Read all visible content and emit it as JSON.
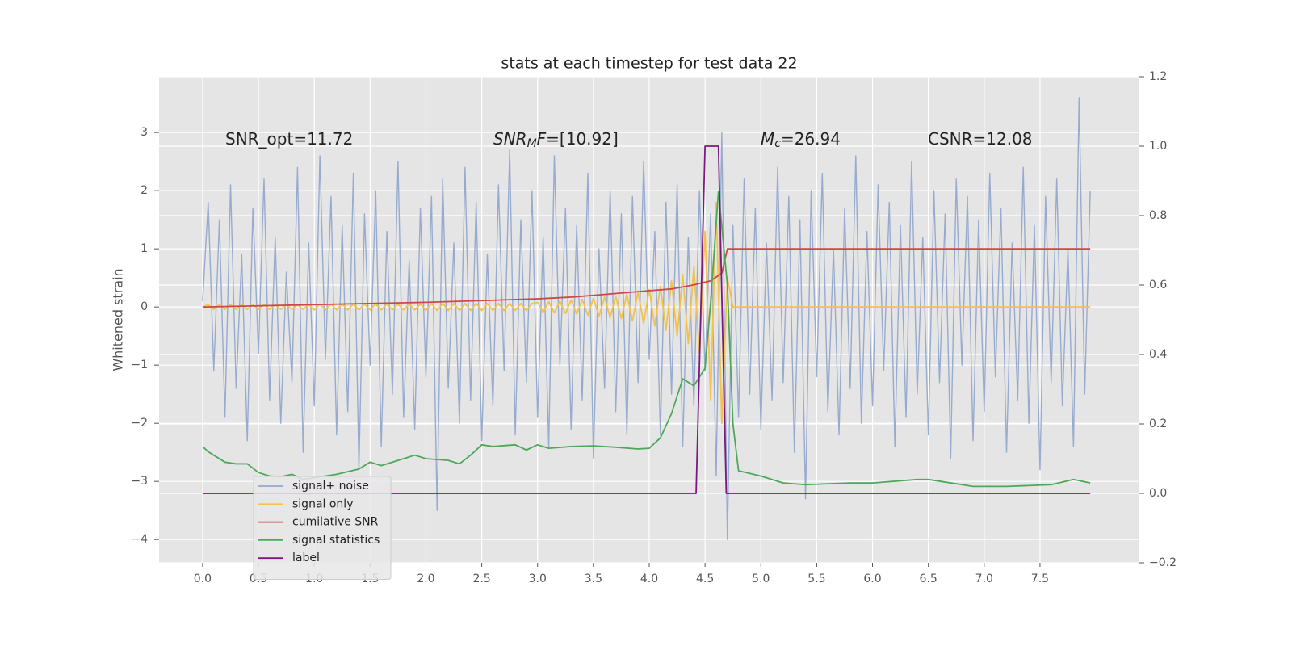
{
  "chart_data": {
    "type": "line",
    "title": "stats at each timestep for test data 22",
    "ylabel": "Whitened strain",
    "grid": true,
    "legend": "lower left",
    "xlim": [
      -0.39,
      8.39
    ],
    "ylim": [
      -4.4,
      3.96
    ],
    "y2lim": [
      -0.2,
      1.2
    ],
    "xticks": [
      {
        "value": 0,
        "label": "0.0"
      },
      {
        "value": 0.5,
        "label": "0.5"
      },
      {
        "value": 1,
        "label": "1.0"
      },
      {
        "value": 1.5,
        "label": "1.5"
      },
      {
        "value": 2,
        "label": "2.0"
      },
      {
        "value": 2.5,
        "label": "2.5"
      },
      {
        "value": 3,
        "label": "3.0"
      },
      {
        "value": 3.5,
        "label": "3.5"
      },
      {
        "value": 4,
        "label": "4.0"
      },
      {
        "value": 4.5,
        "label": "4.5"
      },
      {
        "value": 5,
        "label": "5.0"
      },
      {
        "value": 5.5,
        "label": "5.5"
      },
      {
        "value": 6,
        "label": "6.0"
      },
      {
        "value": 6.5,
        "label": "6.5"
      },
      {
        "value": 7,
        "label": "7.0"
      },
      {
        "value": 7.5,
        "label": "7.5"
      }
    ],
    "yticks": [
      {
        "value": -4,
        "label": "−4"
      },
      {
        "value": -3,
        "label": "−3"
      },
      {
        "value": -2,
        "label": "−2"
      },
      {
        "value": -1,
        "label": "−1"
      },
      0,
      1,
      2,
      3
    ],
    "y2ticks": [
      {
        "value": -0.2,
        "label": "−0.2"
      },
      {
        "value": 0,
        "label": "0.0"
      },
      {
        "value": 0.2,
        "label": "0.2"
      },
      {
        "value": 0.4,
        "label": "0.4"
      },
      {
        "value": 0.6,
        "label": "0.6"
      },
      {
        "value": 0.8,
        "label": "0.8"
      },
      {
        "value": 1,
        "label": "1.0"
      },
      {
        "value": 1.2,
        "label": "1.2"
      }
    ],
    "annotations": [
      [
        {
          "text": "SNR_opt=11.72"
        }
      ],
      [
        {
          "text": "SNR",
          "style": "italic"
        },
        {
          "text": "M",
          "style": "sub"
        },
        {
          "text": "F",
          "style": "italic"
        },
        {
          "text": "=[10.92]"
        }
      ],
      [
        {
          "text": "M",
          "style": "italic"
        },
        {
          "text": "c",
          "style": "sub"
        },
        {
          "text": "=26.94"
        }
      ],
      [
        {
          "text": "CSNR=12.08"
        }
      ]
    ],
    "x": [
      0,
      0.05,
      0.1,
      0.15,
      0.2,
      0.25,
      0.3,
      0.35,
      0.4,
      0.45,
      0.5,
      0.55,
      0.6,
      0.65,
      0.7,
      0.75,
      0.8,
      0.85,
      0.9,
      0.95,
      1,
      1.05,
      1.1,
      1.15,
      1.2,
      1.25,
      1.3,
      1.35,
      1.4,
      1.45,
      1.5,
      1.55,
      1.6,
      1.65,
      1.7,
      1.75,
      1.8,
      1.85,
      1.9,
      1.95,
      2,
      2.05,
      2.1,
      2.15,
      2.2,
      2.25,
      2.3,
      2.35,
      2.4,
      2.45,
      2.5,
      2.55,
      2.6,
      2.65,
      2.7,
      2.75,
      2.8,
      2.85,
      2.9,
      2.95,
      3,
      3.05,
      3.1,
      3.15,
      3.2,
      3.25,
      3.3,
      3.35,
      3.4,
      3.45,
      3.5,
      3.55,
      3.6,
      3.65,
      3.7,
      3.75,
      3.8,
      3.85,
      3.9,
      3.95,
      4,
      4.05,
      4.1,
      4.15,
      4.2,
      4.25,
      4.3,
      4.35,
      4.4,
      4.45,
      4.5,
      4.55,
      4.6,
      4.65,
      4.7,
      4.75,
      4.8,
      4.85,
      4.9,
      4.95,
      5,
      5.05,
      5.1,
      5.15,
      5.2,
      5.25,
      5.3,
      5.35,
      5.4,
      5.45,
      5.5,
      5.55,
      5.6,
      5.65,
      5.7,
      5.75,
      5.8,
      5.85,
      5.9,
      5.95,
      6,
      6.05,
      6.1,
      6.15,
      6.2,
      6.25,
      6.3,
      6.35,
      6.4,
      6.45,
      6.5,
      6.55,
      6.6,
      6.65,
      6.7,
      6.75,
      6.8,
      6.85,
      6.9,
      6.95,
      7,
      7.05,
      7.1,
      7.15,
      7.2,
      7.25,
      7.3,
      7.35,
      7.4,
      7.45,
      7.5,
      7.55,
      7.6,
      7.65,
      7.7,
      7.75,
      7.8,
      7.85,
      7.9,
      7.95
    ],
    "series": [
      {
        "name": "signal+ noise",
        "color": "#92a8cd",
        "values": [
          0.1,
          1.8,
          -1.1,
          1.5,
          -1.9,
          2.1,
          -1.4,
          0.9,
          -2.3,
          1.7,
          -0.8,
          2.2,
          -1.6,
          1.2,
          -2.0,
          0.6,
          -1.3,
          2.4,
          -2.5,
          1.1,
          -1.7,
          2.6,
          -0.9,
          1.9,
          -2.2,
          1.4,
          -1.8,
          2.3,
          -2.8,
          1.6,
          -1.0,
          2.0,
          -2.4,
          1.3,
          -1.5,
          2.5,
          -1.9,
          0.8,
          -2.1,
          1.7,
          -1.2,
          1.9,
          -3.5,
          2.2,
          -1.4,
          1.1,
          -2.0,
          2.4,
          -1.6,
          1.8,
          -2.3,
          0.9,
          -1.7,
          2.1,
          -1.1,
          2.7,
          -2.2,
          1.5,
          -1.3,
          2.0,
          -1.9,
          1.2,
          -2.4,
          2.6,
          -1.0,
          1.7,
          -2.1,
          1.4,
          -1.6,
          2.3,
          -2.6,
          1.0,
          -1.4,
          2.0,
          -1.8,
          1.6,
          -2.2,
          1.9,
          -1.3,
          2.5,
          -0.9,
          1.3,
          -2.2,
          1.8,
          -1.5,
          2.1,
          -2.4,
          1.2,
          -1.7,
          2.0,
          -1.1,
          1.6,
          -2.9,
          3.0,
          -4.0,
          1.4,
          -1.9,
          2.2,
          -1.5,
          1.7,
          -2.1,
          1.1,
          -1.6,
          2.4,
          -1.3,
          1.9,
          -2.5,
          1.5,
          -3.3,
          2.0,
          -1.2,
          2.3,
          -1.8,
          1.0,
          -2.2,
          1.7,
          -1.4,
          2.6,
          -2.0,
          1.3,
          -1.7,
          2.1,
          -1.1,
          1.8,
          -2.4,
          1.4,
          -1.9,
          2.5,
          -1.5,
          1.2,
          -2.2,
          2.0,
          -1.3,
          1.6,
          -2.6,
          2.2,
          -1.0,
          1.9,
          -2.3,
          1.5,
          -1.8,
          2.3,
          -1.2,
          1.7,
          -2.5,
          1.1,
          -1.6,
          2.4,
          -2.0,
          1.4,
          -2.8,
          1.9,
          -1.3,
          2.2,
          -1.7,
          1.0,
          -2.4,
          3.6,
          -1.5,
          2.0
        ]
      },
      {
        "name": "signal only",
        "color": "#f2c14e",
        "values": [
          0,
          0.04,
          -0.04,
          0.04,
          -0.04,
          0.04,
          -0.04,
          0.04,
          -0.04,
          0.04,
          -0.04,
          0.04,
          -0.04,
          0.04,
          -0.04,
          0.04,
          -0.04,
          0.04,
          -0.04,
          0.04,
          -0.05,
          0.05,
          -0.05,
          0.05,
          -0.05,
          0.05,
          -0.05,
          0.05,
          -0.05,
          0.05,
          -0.05,
          0.05,
          -0.05,
          0.05,
          -0.05,
          0.05,
          -0.05,
          0.05,
          -0.05,
          0.05,
          -0.06,
          0.06,
          -0.06,
          0.06,
          -0.06,
          0.06,
          -0.06,
          0.06,
          -0.06,
          0.06,
          -0.06,
          0.06,
          -0.06,
          0.06,
          -0.06,
          0.06,
          -0.06,
          0.06,
          -0.06,
          0.06,
          0.08,
          -0.09,
          0.09,
          -0.1,
          0.1,
          -0.11,
          0.12,
          -0.12,
          0.13,
          -0.14,
          0.15,
          -0.16,
          0.17,
          -0.18,
          0.19,
          -0.2,
          0.22,
          -0.24,
          0.26,
          -0.28,
          0.3,
          -0.33,
          0.36,
          -0.4,
          0.45,
          -0.5,
          0.56,
          -0.63,
          0.7,
          -0.8,
          1.3,
          -1.6,
          1.8,
          -2.0,
          0.5,
          0,
          0,
          0,
          0,
          0,
          0,
          0,
          0,
          0,
          0,
          0,
          0,
          0,
          0,
          0,
          0,
          0,
          0,
          0,
          0,
          0,
          0,
          0,
          0,
          0,
          0,
          0,
          0,
          0,
          0,
          0,
          0,
          0,
          0,
          0,
          0,
          0,
          0,
          0,
          0,
          0,
          0,
          0,
          0,
          0,
          0,
          0,
          0,
          0,
          0,
          0,
          0,
          0,
          0,
          0,
          0,
          0,
          0,
          0,
          0,
          0,
          0,
          0,
          0,
          0
        ]
      },
      {
        "name": "cumilative SNR",
        "color": "#d0474a",
        "x": [
          0,
          1,
          2,
          3,
          3.3,
          3.5,
          4,
          4.2,
          4.4,
          4.55,
          4.65,
          4.7,
          7.95
        ],
        "values": [
          0,
          0.04,
          0.08,
          0.14,
          0.17,
          0.2,
          0.28,
          0.31,
          0.38,
          0.45,
          0.58,
          1,
          1
        ]
      },
      {
        "name": "signal statistics",
        "color": "#4ea85c",
        "axis": "y2",
        "x": [
          0,
          0.05,
          0.1,
          0.2,
          0.3,
          0.4,
          0.5,
          0.6,
          0.7,
          0.8,
          0.9,
          1,
          1.2,
          1.4,
          1.5,
          1.6,
          1.8,
          1.9,
          2,
          2.2,
          2.3,
          2.4,
          2.5,
          2.6,
          2.8,
          2.9,
          3,
          3.1,
          3.3,
          3.5,
          3.7,
          3.9,
          4,
          4.1,
          4.2,
          4.3,
          4.4,
          4.5,
          4.55,
          4.62,
          4.7,
          4.75,
          4.8,
          5,
          5.2,
          5.4,
          5.8,
          6,
          6.4,
          6.5,
          6.6,
          6.9,
          7.2,
          7.6,
          7.8,
          7.95
        ],
        "values": [
          0.135,
          0.12,
          0.11,
          0.09,
          0.085,
          0.085,
          0.06,
          0.05,
          0.048,
          0.055,
          0.04,
          0.045,
          0.055,
          0.07,
          0.09,
          0.08,
          0.1,
          0.11,
          0.1,
          0.095,
          0.085,
          0.11,
          0.14,
          0.135,
          0.14,
          0.125,
          0.14,
          0.13,
          0.135,
          0.137,
          0.133,
          0.128,
          0.13,
          0.16,
          0.23,
          0.33,
          0.31,
          0.36,
          0.55,
          0.87,
          0.6,
          0.2,
          0.065,
          0.05,
          0.03,
          0.025,
          0.03,
          0.03,
          0.04,
          0.04,
          0.035,
          0.02,
          0.02,
          0.025,
          0.04,
          0.03
        ]
      },
      {
        "name": "label",
        "color": "#7b1a7e",
        "axis": "y2",
        "x": [
          0,
          4.42,
          4.5,
          4.62,
          4.69,
          7.95
        ],
        "values": [
          0,
          0,
          1,
          1,
          0,
          0
        ]
      }
    ]
  }
}
